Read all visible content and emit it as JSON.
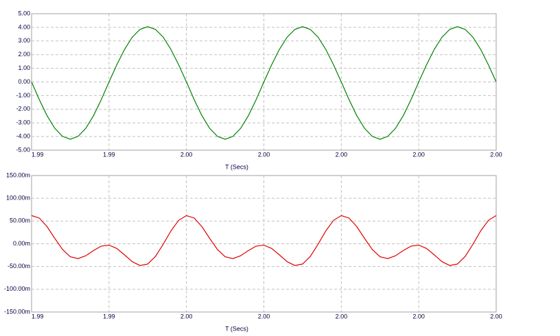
{
  "chart_data": [
    {
      "type": "line",
      "xlabel": "T (Secs)",
      "x": [
        1.994,
        1.9941,
        1.9942,
        1.9943,
        1.9944,
        1.9945,
        1.9946,
        1.9947,
        1.9948,
        1.9949,
        1.995,
        1.9951,
        1.9952,
        1.9953,
        1.9954,
        1.9955,
        1.9956,
        1.9957,
        1.9958,
        1.9959,
        1.996,
        1.9961,
        1.9962,
        1.9963,
        1.9964,
        1.9965,
        1.9966,
        1.9967,
        1.9968,
        1.9969,
        1.997,
        1.9971,
        1.9972,
        1.9973,
        1.9974,
        1.9975,
        1.9976,
        1.9977,
        1.9978,
        1.9979,
        1.998,
        1.9981,
        1.9982,
        1.9983,
        1.9984,
        1.9985,
        1.9986,
        1.9987,
        1.9988,
        1.9989,
        1.999,
        1.9991,
        1.9992,
        1.9993,
        1.9994,
        1.9995,
        1.9996,
        1.9997,
        1.9998,
        1.9999,
        2.0
      ],
      "series": [
        {
          "color": "#008000",
          "values": [
            0,
            -1.3,
            -2.47,
            -3.4,
            -3.99,
            -4.2,
            -3.99,
            -3.4,
            -2.47,
            -1.3,
            0,
            1.25,
            2.38,
            3.28,
            3.85,
            4.05,
            3.85,
            3.28,
            2.38,
            1.25,
            0,
            -1.3,
            -2.47,
            -3.4,
            -3.99,
            -4.2,
            -3.99,
            -3.4,
            -2.47,
            -1.3,
            0,
            1.25,
            2.38,
            3.28,
            3.85,
            4.05,
            3.85,
            3.28,
            2.38,
            1.25,
            0,
            -1.3,
            -2.47,
            -3.4,
            -3.99,
            -4.2,
            -3.99,
            -3.4,
            -2.47,
            -1.3,
            0,
            1.25,
            2.38,
            3.28,
            3.85,
            4.05,
            3.85,
            3.28,
            2.38,
            1.25,
            0
          ]
        }
      ],
      "xlim": [
        1.994,
        2.0
      ],
      "xticks": [
        {
          "value": 1.994,
          "label": "1.99"
        },
        {
          "value": 1.995,
          "label": "1.99"
        },
        {
          "value": 1.996,
          "label": "2.00"
        },
        {
          "value": 1.997,
          "label": "2.00"
        },
        {
          "value": 1.998,
          "label": "2.00"
        },
        {
          "value": 1.999,
          "label": "2.00"
        },
        {
          "value": 2.0,
          "label": "2.00"
        }
      ],
      "ylim": [
        -5,
        5
      ],
      "yticks": [
        {
          "value": 5,
          "label": "5.00"
        },
        {
          "value": 4,
          "label": "4.00"
        },
        {
          "value": 3,
          "label": "3.00"
        },
        {
          "value": 2,
          "label": "2.00"
        },
        {
          "value": 1,
          "label": "1.00"
        },
        {
          "value": 0,
          "label": "0.00"
        },
        {
          "value": -1,
          "label": "-1.00"
        },
        {
          "value": -2,
          "label": "-2.00"
        },
        {
          "value": -3,
          "label": "-3.00"
        },
        {
          "value": -4,
          "label": "-4.00"
        },
        {
          "value": -5,
          "label": "-5.00"
        }
      ],
      "grid": true
    },
    {
      "type": "line",
      "xlabel": "T (Secs)",
      "x": [
        1.994,
        1.9941,
        1.9942,
        1.9943,
        1.9944,
        1.9945,
        1.9946,
        1.9947,
        1.9948,
        1.9949,
        1.995,
        1.9951,
        1.9952,
        1.9953,
        1.9954,
        1.9955,
        1.9956,
        1.9957,
        1.9958,
        1.9959,
        1.996,
        1.9961,
        1.9962,
        1.9963,
        1.9964,
        1.9965,
        1.9966,
        1.9967,
        1.9968,
        1.9969,
        1.997,
        1.9971,
        1.9972,
        1.9973,
        1.9974,
        1.9975,
        1.9976,
        1.9977,
        1.9978,
        1.9979,
        1.998,
        1.9981,
        1.9982,
        1.9983,
        1.9984,
        1.9985,
        1.9986,
        1.9987,
        1.9988,
        1.9989,
        1.999,
        1.9991,
        1.9992,
        1.9993,
        1.9994,
        1.9995,
        1.9996,
        1.9997,
        1.9998,
        1.9999,
        2.0
      ],
      "series": [
        {
          "color": "#e00000",
          "values": [
            62,
            56.6,
            37.7,
            11.9,
            -12.6,
            -28.5,
            -32.6,
            -26.3,
            -14.9,
            -5.2,
            -3,
            -10.2,
            -24.3,
            -39.3,
            -47.8,
            -44.5,
            -27.8,
            -1.1,
            28.3,
            51.6,
            62,
            56.6,
            37.7,
            11.9,
            -12.6,
            -28.5,
            -32.6,
            -26.3,
            -14.9,
            -5.2,
            -3,
            -10.2,
            -24.3,
            -39.3,
            -47.8,
            -44.5,
            -27.8,
            -1.1,
            28.3,
            51.6,
            62,
            56.6,
            37.7,
            11.9,
            -12.6,
            -28.5,
            -32.6,
            -26.3,
            -14.9,
            -5.2,
            -3,
            -10.2,
            -24.3,
            -39.3,
            -47.8,
            -44.5,
            -27.8,
            -1.1,
            28.3,
            51.6,
            62
          ]
        }
      ],
      "xlim": [
        1.994,
        2.0
      ],
      "xticks": [
        {
          "value": 1.994,
          "label": "1.99"
        },
        {
          "value": 1.995,
          "label": "1.99"
        },
        {
          "value": 1.996,
          "label": "2.00"
        },
        {
          "value": 1.997,
          "label": "2.00"
        },
        {
          "value": 1.998,
          "label": "2.00"
        },
        {
          "value": 1.999,
          "label": "2.00"
        },
        {
          "value": 2.0,
          "label": "2.00"
        }
      ],
      "ylim": [
        -150,
        150
      ],
      "yticks": [
        {
          "value": 150,
          "label": "150.00m"
        },
        {
          "value": 100,
          "label": "100.00m"
        },
        {
          "value": 50,
          "label": "50.00m"
        },
        {
          "value": 0,
          "label": "0.00m"
        },
        {
          "value": -50,
          "label": "-50.00m"
        },
        {
          "value": -100,
          "label": "-100.00m"
        },
        {
          "value": -150,
          "label": "-150.00m"
        }
      ],
      "grid": true
    }
  ]
}
